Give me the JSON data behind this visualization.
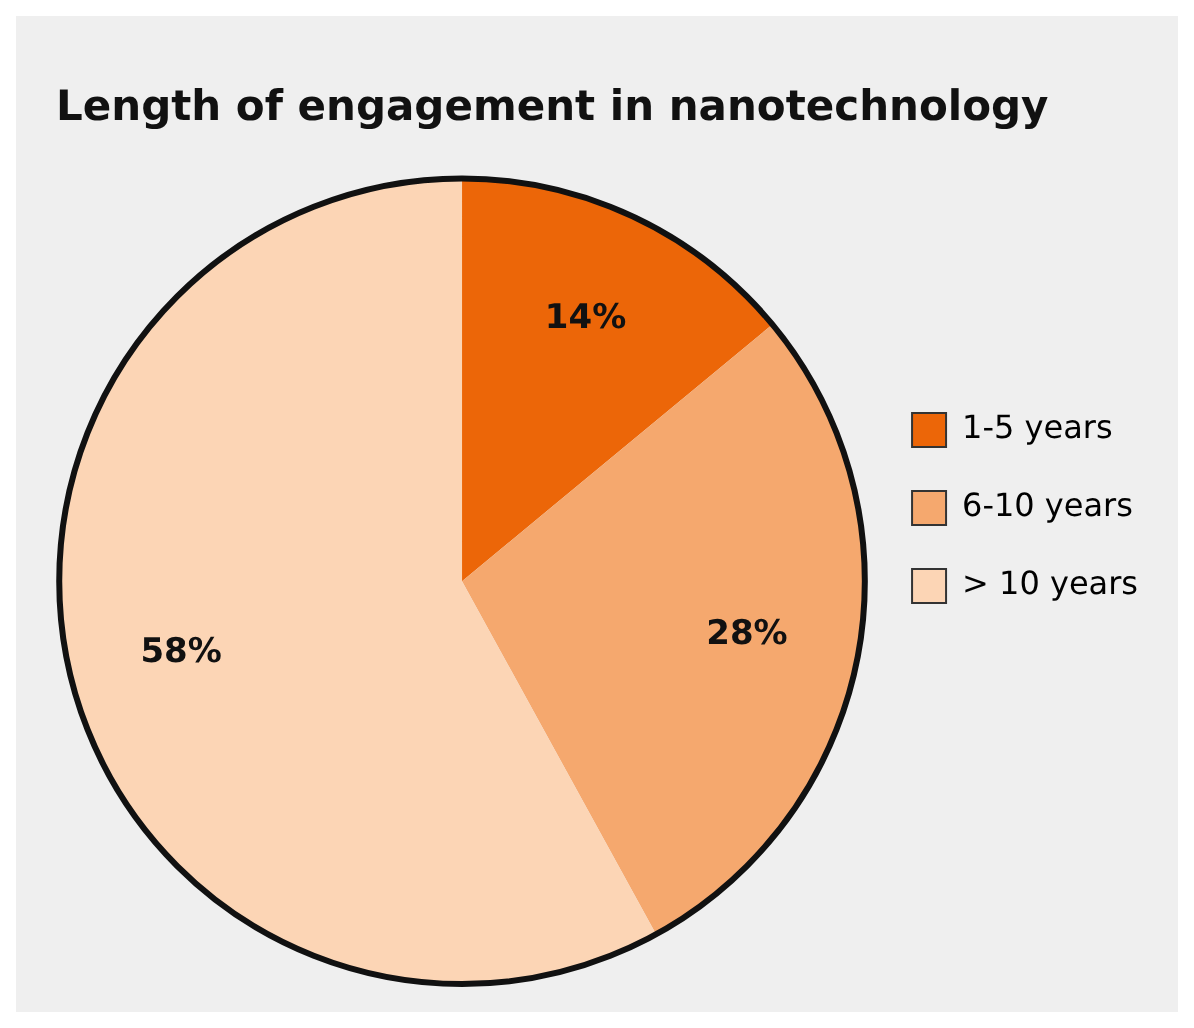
{
  "chart_data": {
    "type": "pie",
    "title": "Length of engagement in nanotechnology",
    "categories": [
      "1-5 years",
      "6-10 years",
      "> 10 years"
    ],
    "values": [
      14,
      28,
      58
    ],
    "colors": [
      "#ec6608",
      "#f5a86e",
      "#fcd5b5"
    ],
    "value_labels": [
      "14%",
      "28%",
      "58%"
    ],
    "legend": "right"
  }
}
